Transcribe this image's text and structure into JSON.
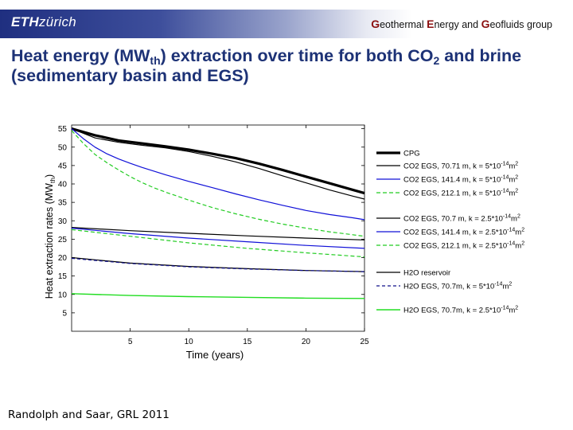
{
  "header": {
    "logo_bold": "ETH",
    "logo_light": "zürich",
    "group": [
      {
        "initial": "G",
        "rest": "eothermal "
      },
      {
        "initial": "E",
        "rest": "nergy and "
      },
      {
        "initial": "G",
        "rest": "eofluids"
      },
      {
        "initial": "",
        "rest": " group"
      }
    ]
  },
  "slide": {
    "title_part1": "Heat energy (MW",
    "title_sub": "th",
    "title_part2": ") extraction over time for both CO",
    "title_sub2": "2",
    "title_part3": " and brine (sedimentary basin and EGS)",
    "citation": "Randolph and Saar, GRL 2011"
  },
  "chart_data": {
    "type": "line",
    "xlabel": "Time (years)",
    "ylabel": "Heat extraction rates  (MW",
    "ylabel_sub": "th",
    "ylabel_end": ")",
    "xlim": [
      0,
      25
    ],
    "ylim": [
      0,
      56
    ],
    "xticks": [
      5,
      10,
      15,
      20,
      25
    ],
    "yticks": [
      5,
      10,
      15,
      20,
      25,
      30,
      35,
      40,
      45,
      50,
      55
    ],
    "grid": false,
    "legend_position": "right",
    "series": [
      {
        "name": "CPG",
        "color": "#000000",
        "width": 3.2,
        "dash": "",
        "x": [
          0,
          2,
          4,
          6,
          8,
          10,
          12,
          14,
          16,
          18,
          20,
          22,
          24,
          25
        ],
        "y": [
          55,
          53.2,
          51.8,
          51.0,
          50.2,
          49.3,
          48.2,
          47.0,
          45.5,
          43.8,
          42.0,
          40.2,
          38.4,
          37.5
        ]
      },
      {
        "name": "CO2 EGS, 70.71 m, k = 5*10",
        "sup": "-14",
        "unit": "m",
        "unit_sup": "2",
        "color": "#000000",
        "width": 1.2,
        "dash": "",
        "x": [
          0,
          2,
          4,
          6,
          8,
          10,
          12,
          14,
          16,
          18,
          20,
          22,
          24,
          25
        ],
        "y": [
          55,
          52.5,
          51.3,
          50.5,
          49.8,
          48.8,
          47.5,
          46.0,
          44.2,
          42.2,
          40.3,
          38.4,
          36.7,
          35.9
        ]
      },
      {
        "name": "CO2 EGS, 141.4 m, k = 5*10",
        "sup": "-14",
        "unit": "m",
        "unit_sup": "2",
        "color": "#1010d8",
        "width": 1.2,
        "dash": "",
        "x": [
          0,
          1,
          2,
          3,
          4,
          5,
          6,
          8,
          10,
          12,
          14,
          16,
          18,
          20,
          22,
          24,
          25
        ],
        "y": [
          55,
          52.3,
          50.0,
          48.2,
          46.8,
          45.6,
          44.5,
          42.5,
          40.7,
          39.0,
          37.3,
          35.7,
          34.2,
          32.8,
          31.7,
          30.8,
          30.3
        ]
      },
      {
        "name": "CO2 EGS, 212.1 m, k = 5*10",
        "sup": "-14",
        "unit": "m",
        "unit_sup": "2",
        "color": "#22cc22",
        "width": 1.2,
        "dash": "5,3",
        "x": [
          0,
          1,
          2,
          3,
          4,
          5,
          6,
          7,
          8,
          10,
          12,
          14,
          16,
          18,
          20,
          22,
          24,
          25
        ],
        "y": [
          54.5,
          51.0,
          48.0,
          45.8,
          43.8,
          42.0,
          40.4,
          39.0,
          37.8,
          35.6,
          33.6,
          31.9,
          30.4,
          29.1,
          28.0,
          27.0,
          26.2,
          25.8
        ]
      },
      {
        "name": "CO2 EGS, 70.7 m, k = 2.5*10",
        "sup": "-14",
        "unit": "m",
        "unit_sup": "2",
        "color": "#000000",
        "width": 1.2,
        "dash": "",
        "x": [
          0,
          5,
          10,
          15,
          20,
          25
        ],
        "y": [
          28.2,
          27.3,
          26.6,
          25.9,
          25.3,
          24.8
        ]
      },
      {
        "name": "CO2 EGS, 141.4 m, k = 2.5*10",
        "sup": "-14",
        "unit": "m",
        "unit_sup": "2",
        "color": "#1010d8",
        "width": 1.2,
        "dash": "",
        "x": [
          0,
          5,
          10,
          15,
          20,
          25
        ],
        "y": [
          28.0,
          26.5,
          25.3,
          24.3,
          23.3,
          22.5
        ]
      },
      {
        "name": "CO2 EGS, 212.1 m, k = 2.5*10",
        "sup": "-14",
        "unit": "m",
        "unit_sup": "2",
        "color": "#22cc22",
        "width": 1.2,
        "dash": "5,3",
        "x": [
          0,
          5,
          10,
          15,
          20,
          25
        ],
        "y": [
          27.6,
          25.8,
          24.0,
          22.5,
          21.3,
          20.2
        ]
      },
      {
        "name": "H2O reservoir",
        "sup": "",
        "unit": "",
        "unit_sup": "",
        "color": "#000000",
        "width": 1.2,
        "dash": "",
        "x": [
          0,
          5,
          10,
          15,
          20,
          25
        ],
        "y": [
          20.0,
          18.5,
          17.6,
          17.0,
          16.5,
          16.2
        ]
      },
      {
        "name": "H2O EGS, 70.7m, k = 5*10",
        "sup": "-14",
        "unit": "m",
        "unit_sup": "2",
        "color": "#10108a",
        "width": 1.2,
        "dash": "4,3",
        "x": [
          0,
          5,
          10,
          15,
          20,
          25
        ],
        "y": [
          19.8,
          18.4,
          17.5,
          16.9,
          16.5,
          16.2
        ]
      },
      {
        "name": "H2O EGS, 70.7m, k = 2.5*10",
        "sup": "-14",
        "unit": "m",
        "unit_sup": "2",
        "color": "#22dd22",
        "width": 1.4,
        "dash": "",
        "x": [
          0,
          5,
          10,
          15,
          20,
          25
        ],
        "y": [
          10.2,
          9.7,
          9.4,
          9.2,
          9.0,
          8.9
        ]
      }
    ]
  }
}
